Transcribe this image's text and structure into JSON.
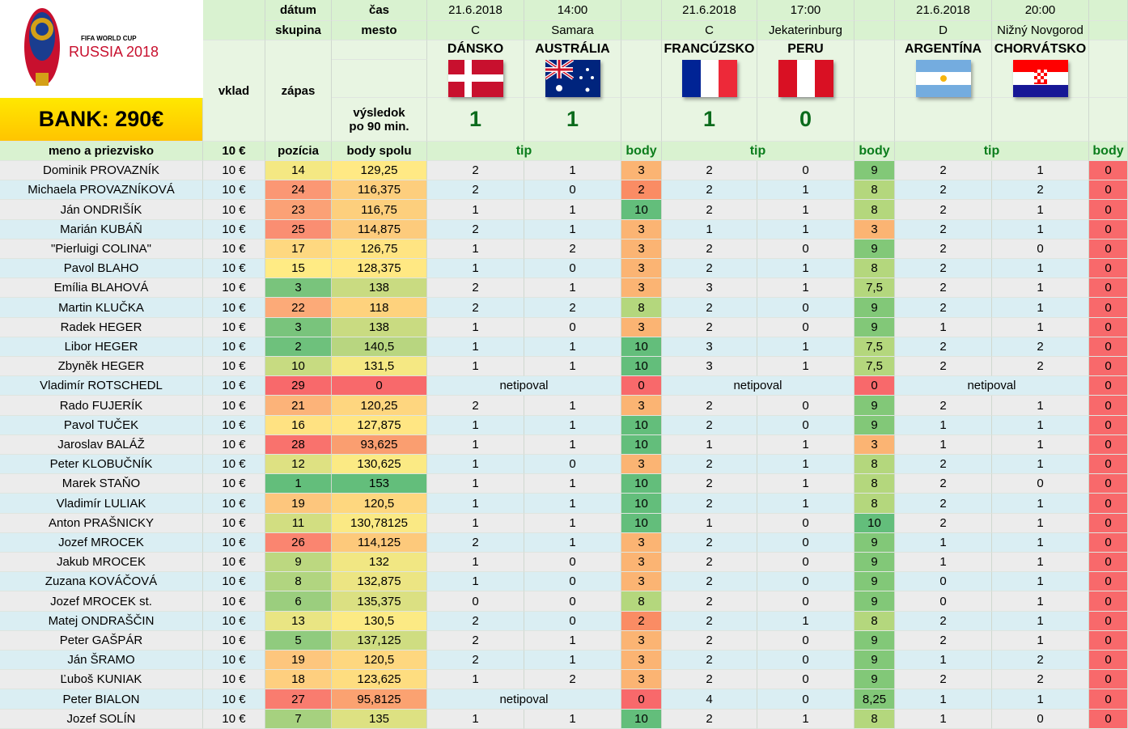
{
  "logo": {
    "line1": "FIFA WORLD CUP",
    "line2": "RUSSIA 2018"
  },
  "bank": "BANK: 290€",
  "headers": {
    "datum": "dátum",
    "cas": "čas",
    "skupina": "skupina",
    "mesto": "mesto",
    "vklad": "vklad",
    "zapas": "zápas",
    "vysledok": "výsledok",
    "po90": "po 90 min.",
    "meno": "meno a priezvisko",
    "vklad_val": "10 €",
    "pozicia": "pozícia",
    "body_spolu": "body spolu",
    "tip": "tip",
    "body": "body"
  },
  "matches": [
    {
      "date": "21.6.2018",
      "time": "14:00",
      "group": "C",
      "city": "Samara",
      "home": "DÁNSKO",
      "away": "AUSTRÁLIA",
      "home_score": "1",
      "away_score": "1",
      "home_flag": "denmark-flag-icon",
      "away_flag": "australia-flag-icon"
    },
    {
      "date": "21.6.2018",
      "time": "17:00",
      "group": "C",
      "city": "Jekaterinburg",
      "home": "FRANCÚZSKO",
      "away": "PERU",
      "home_score": "1",
      "away_score": "0",
      "home_flag": "france-flag-icon",
      "away_flag": "peru-flag-icon"
    },
    {
      "date": "21.6.2018",
      "time": "20:00",
      "group": "D",
      "city": "Nižný Novgorod",
      "home": "ARGENTÍNA",
      "away": "CHORVÁTSKO",
      "home_score": "",
      "away_score": "",
      "home_flag": "argentina-flag-icon",
      "away_flag": "croatia-flag-icon"
    }
  ],
  "no_tip_label": "netipoval",
  "colors": {
    "header_green": "#d9f2d0",
    "row_blue": "#daeef3",
    "row_gray": "#ececec",
    "score_green": "#0b6b1c",
    "bank_yellow": "#ffd600"
  },
  "rows": [
    {
      "name": "Dominik PROVAZNÍK",
      "vklad": "10 €",
      "pos": "14",
      "total": "129,25",
      "m": [
        [
          "2",
          "1",
          "3"
        ],
        [
          "2",
          "0",
          "9"
        ],
        [
          "2",
          "1",
          "0"
        ]
      ]
    },
    {
      "name": "Michaela PROVAZNÍKOVÁ",
      "vklad": "10 €",
      "pos": "24",
      "total": "116,375",
      "m": [
        [
          "2",
          "0",
          "2"
        ],
        [
          "2",
          "1",
          "8"
        ],
        [
          "2",
          "2",
          "0"
        ]
      ]
    },
    {
      "name": "Ján ONDRIŠÍK",
      "vklad": "10 €",
      "pos": "23",
      "total": "116,75",
      "m": [
        [
          "1",
          "1",
          "10"
        ],
        [
          "2",
          "1",
          "8"
        ],
        [
          "2",
          "1",
          "0"
        ]
      ]
    },
    {
      "name": "Marián KUBÁŇ",
      "vklad": "10 €",
      "pos": "25",
      "total": "114,875",
      "m": [
        [
          "2",
          "1",
          "3"
        ],
        [
          "1",
          "1",
          "3"
        ],
        [
          "2",
          "1",
          "0"
        ]
      ]
    },
    {
      "name": "\"Pierluigi COLINA\"",
      "vklad": "10 €",
      "pos": "17",
      "total": "126,75",
      "m": [
        [
          "1",
          "2",
          "3"
        ],
        [
          "2",
          "0",
          "9"
        ],
        [
          "2",
          "0",
          "0"
        ]
      ]
    },
    {
      "name": "Pavol BLAHO",
      "vklad": "10 €",
      "pos": "15",
      "total": "128,375",
      "m": [
        [
          "1",
          "0",
          "3"
        ],
        [
          "2",
          "1",
          "8"
        ],
        [
          "2",
          "1",
          "0"
        ]
      ]
    },
    {
      "name": "Emília BLAHOVÁ",
      "vklad": "10 €",
      "pos": "3",
      "total": "138",
      "m": [
        [
          "2",
          "1",
          "3"
        ],
        [
          "3",
          "1",
          "7,5"
        ],
        [
          "2",
          "1",
          "0"
        ]
      ]
    },
    {
      "name": "Martin KLUČKA",
      "vklad": "10 €",
      "pos": "22",
      "total": "118",
      "m": [
        [
          "2",
          "2",
          "8"
        ],
        [
          "2",
          "0",
          "9"
        ],
        [
          "2",
          "1",
          "0"
        ]
      ]
    },
    {
      "name": "Radek HEGER",
      "vklad": "10 €",
      "pos": "3",
      "total": "138",
      "m": [
        [
          "1",
          "0",
          "3"
        ],
        [
          "2",
          "0",
          "9"
        ],
        [
          "1",
          "1",
          "0"
        ]
      ]
    },
    {
      "name": "Libor HEGER",
      "vklad": "10 €",
      "pos": "2",
      "total": "140,5",
      "m": [
        [
          "1",
          "1",
          "10"
        ],
        [
          "3",
          "1",
          "7,5"
        ],
        [
          "2",
          "2",
          "0"
        ]
      ]
    },
    {
      "name": "Zbyněk HEGER",
      "vklad": "10 €",
      "pos": "10",
      "total": "131,5",
      "m": [
        [
          "1",
          "1",
          "10"
        ],
        [
          "3",
          "1",
          "7,5"
        ],
        [
          "2",
          "2",
          "0"
        ]
      ]
    },
    {
      "name": "Vladimír ROTSCHEDL",
      "vklad": "10 €",
      "pos": "29",
      "total": "0",
      "m": [
        [
          "",
          "",
          "0"
        ],
        [
          "",
          "",
          "0"
        ],
        [
          "",
          "",
          "0"
        ]
      ],
      "noTip": [
        true,
        true,
        true
      ]
    },
    {
      "name": "Rado FUJERÍK",
      "vklad": "10 €",
      "pos": "21",
      "total": "120,25",
      "m": [
        [
          "2",
          "1",
          "3"
        ],
        [
          "2",
          "0",
          "9"
        ],
        [
          "2",
          "1",
          "0"
        ]
      ]
    },
    {
      "name": "Pavol TUČEK",
      "vklad": "10 €",
      "pos": "16",
      "total": "127,875",
      "m": [
        [
          "1",
          "1",
          "10"
        ],
        [
          "2",
          "0",
          "9"
        ],
        [
          "1",
          "1",
          "0"
        ]
      ]
    },
    {
      "name": "Jaroslav BALÁŽ",
      "vklad": "10 €",
      "pos": "28",
      "total": "93,625",
      "m": [
        [
          "1",
          "1",
          "10"
        ],
        [
          "1",
          "1",
          "3"
        ],
        [
          "1",
          "1",
          "0"
        ]
      ]
    },
    {
      "name": "Peter KLOBUČNÍK",
      "vklad": "10 €",
      "pos": "12",
      "total": "130,625",
      "m": [
        [
          "1",
          "0",
          "3"
        ],
        [
          "2",
          "1",
          "8"
        ],
        [
          "2",
          "1",
          "0"
        ]
      ]
    },
    {
      "name": "Marek STAŇO",
      "vklad": "10 €",
      "pos": "1",
      "total": "153",
      "m": [
        [
          "1",
          "1",
          "10"
        ],
        [
          "2",
          "1",
          "8"
        ],
        [
          "2",
          "0",
          "0"
        ]
      ]
    },
    {
      "name": "Vladimír LULIAK",
      "vklad": "10 €",
      "pos": "19",
      "total": "120,5",
      "m": [
        [
          "1",
          "1",
          "10"
        ],
        [
          "2",
          "1",
          "8"
        ],
        [
          "2",
          "1",
          "0"
        ]
      ]
    },
    {
      "name": "Anton PRAŠNICKY",
      "vklad": "10 €",
      "pos": "11",
      "total": "130,78125",
      "m": [
        [
          "1",
          "1",
          "10"
        ],
        [
          "1",
          "0",
          "10"
        ],
        [
          "2",
          "1",
          "0"
        ]
      ]
    },
    {
      "name": "Jozef MROCEK",
      "vklad": "10 €",
      "pos": "26",
      "total": "114,125",
      "m": [
        [
          "2",
          "1",
          "3"
        ],
        [
          "2",
          "0",
          "9"
        ],
        [
          "1",
          "1",
          "0"
        ]
      ]
    },
    {
      "name": "Jakub MROCEK",
      "vklad": "10 €",
      "pos": "9",
      "total": "132",
      "m": [
        [
          "1",
          "0",
          "3"
        ],
        [
          "2",
          "0",
          "9"
        ],
        [
          "1",
          "1",
          "0"
        ]
      ]
    },
    {
      "name": "Zuzana KOVÁČOVÁ",
      "vklad": "10 €",
      "pos": "8",
      "total": "132,875",
      "m": [
        [
          "1",
          "0",
          "3"
        ],
        [
          "2",
          "0",
          "9"
        ],
        [
          "0",
          "1",
          "0"
        ]
      ]
    },
    {
      "name": "Jozef MROCEK st.",
      "vklad": "10 €",
      "pos": "6",
      "total": "135,375",
      "m": [
        [
          "0",
          "0",
          "8"
        ],
        [
          "2",
          "0",
          "9"
        ],
        [
          "0",
          "1",
          "0"
        ]
      ]
    },
    {
      "name": "Matej ONDRAŠČIN",
      "vklad": "10 €",
      "pos": "13",
      "total": "130,5",
      "m": [
        [
          "2",
          "0",
          "2"
        ],
        [
          "2",
          "1",
          "8"
        ],
        [
          "2",
          "1",
          "0"
        ]
      ]
    },
    {
      "name": "Peter GAŠPÁR",
      "vklad": "10 €",
      "pos": "5",
      "total": "137,125",
      "m": [
        [
          "2",
          "1",
          "3"
        ],
        [
          "2",
          "0",
          "9"
        ],
        [
          "2",
          "1",
          "0"
        ]
      ]
    },
    {
      "name": "Ján ŠRAMO",
      "vklad": "10 €",
      "pos": "19",
      "total": "120,5",
      "m": [
        [
          "2",
          "1",
          "3"
        ],
        [
          "2",
          "0",
          "9"
        ],
        [
          "1",
          "2",
          "0"
        ]
      ]
    },
    {
      "name": "Ľuboš KUNIAK",
      "vklad": "10 €",
      "pos": "18",
      "total": "123,625",
      "m": [
        [
          "1",
          "2",
          "3"
        ],
        [
          "2",
          "0",
          "9"
        ],
        [
          "2",
          "2",
          "0"
        ]
      ]
    },
    {
      "name": "Peter BIALON",
      "vklad": "10 €",
      "pos": "27",
      "total": "95,8125",
      "m": [
        [
          "",
          "",
          "0"
        ],
        [
          "4",
          "0",
          "8,25"
        ],
        [
          "1",
          "1",
          "0"
        ]
      ],
      "noTip": [
        true,
        false,
        false
      ]
    },
    {
      "name": "Jozef SOLÍN",
      "vklad": "10 €",
      "pos": "7",
      "total": "135",
      "m": [
        [
          "1",
          "1",
          "10"
        ],
        [
          "2",
          "1",
          "8"
        ],
        [
          "1",
          "0",
          "0"
        ]
      ]
    }
  ]
}
